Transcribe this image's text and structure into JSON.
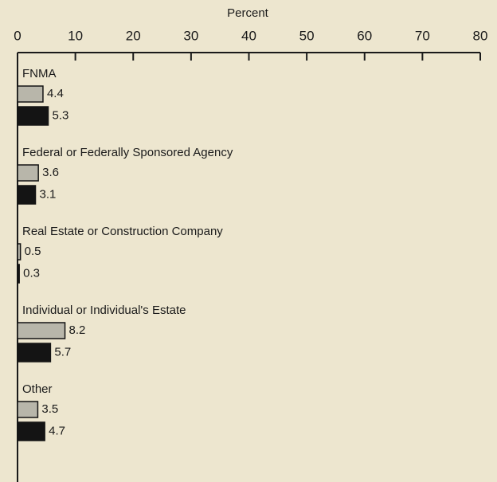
{
  "chart_data": {
    "type": "hbar",
    "xlabel": "Percent",
    "categories": [
      "FNMA",
      "Federal or Federally Sponsored Agency",
      "Real Estate or Construction Company",
      "Individual or Individual's Estate",
      "Other"
    ],
    "series": [
      {
        "color": "#b8b6aa",
        "values": [
          4.4,
          3.6,
          0.5,
          8.2,
          3.5
        ]
      },
      {
        "color": "#141414",
        "values": [
          5.3,
          3.1,
          0.3,
          5.7,
          4.7
        ]
      }
    ],
    "xlim": [
      0,
      80
    ],
    "xticks": [
      0,
      10,
      20,
      30,
      40,
      50,
      60,
      70,
      80
    ]
  }
}
